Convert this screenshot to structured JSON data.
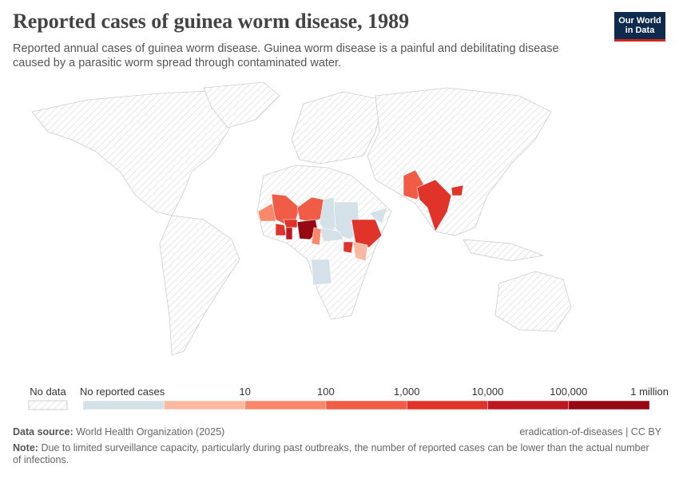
{
  "header": {
    "title": "Reported cases of guinea worm disease, 1989",
    "subtitle": "Reported annual cases of guinea worm disease. Guinea worm disease is a painful and debilitating disease caused by a parasitic worm spread through contaminated water.",
    "logo": [
      "Our World",
      "in Data"
    ]
  },
  "legend": {
    "no_data": "No data",
    "first_label": "No reported cases",
    "bins": [
      "#d4e1e8",
      "#fcb9a2",
      "#f8876b",
      "#f15c46",
      "#e0342b",
      "#bd1722",
      "#960812"
    ],
    "thresholds": [
      "10",
      "100",
      "1,000",
      "10,000",
      "100,000",
      "1 million"
    ]
  },
  "footer": {
    "source_label": "Data source:",
    "source": "World Health Organization (2025)",
    "right": "eradication-of-diseases | CC BY",
    "note_label": "Note:",
    "note": "Due to limited surveillance capacity, particularly during past outbreaks, the number of reported cases can be lower than the actual number of infections."
  }
}
